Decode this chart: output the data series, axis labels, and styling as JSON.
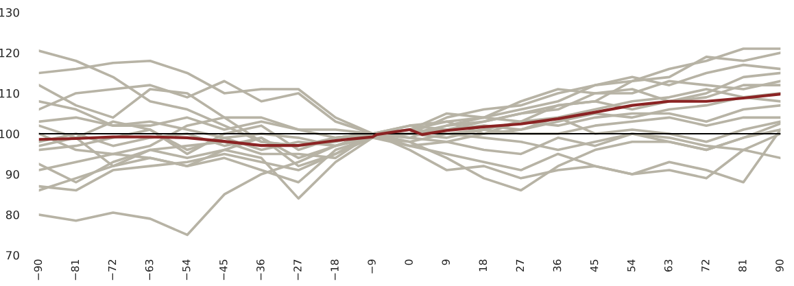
{
  "chart_data": {
    "type": "line",
    "x": [
      -90,
      -81,
      -72,
      -63,
      -54,
      -45,
      -36,
      -27,
      -18,
      -9,
      0,
      9,
      18,
      27,
      36,
      45,
      54,
      63,
      72,
      81,
      90
    ],
    "xlim": [
      -90,
      90
    ],
    "xticks": [
      {
        "value": -90,
        "label": "−90"
      },
      {
        "value": -81,
        "label": "−81"
      },
      {
        "value": -72,
        "label": "−72"
      },
      {
        "value": -63,
        "label": "−63"
      },
      {
        "value": -54,
        "label": "−54"
      },
      {
        "value": -45,
        "label": "−45"
      },
      {
        "value": -36,
        "label": "−36"
      },
      {
        "value": -27,
        "label": "−27"
      },
      {
        "value": -18,
        "label": "−18"
      },
      {
        "value": -9,
        "label": "−9"
      },
      0,
      9,
      18,
      27,
      36,
      45,
      54,
      63,
      72,
      81,
      90
    ],
    "ylim": [
      70,
      130
    ],
    "yticks": [
      70,
      80,
      90,
      100,
      110,
      120,
      130
    ],
    "ref_lines": [
      {
        "axis": "y",
        "value": 100,
        "color": "#000000"
      }
    ],
    "series": [
      {
        "color": "#b7b3a5",
        "values": [
          120.5,
          118,
          114,
          108,
          106,
          102,
          98,
          97,
          98,
          100,
          101,
          103,
          104,
          106,
          108,
          112,
          113,
          116,
          118,
          121,
          121
        ]
      },
      {
        "color": "#b7b3a5",
        "values": [
          115,
          116,
          117.5,
          118,
          115,
          110,
          111,
          111,
          104,
          100,
          102,
          101,
          103,
          105,
          107,
          108,
          113,
          114,
          119,
          118,
          120
        ]
      },
      {
        "color": "#b7b3a5",
        "values": [
          112,
          107,
          104,
          111,
          110,
          104,
          104,
          101,
          99,
          100,
          100,
          104,
          106,
          107,
          110,
          112,
          114,
          112,
          115,
          117,
          116
        ]
      },
      {
        "color": "#b7b3a5",
        "values": [
          106,
          110,
          111,
          112,
          109,
          113,
          108,
          110,
          103,
          100,
          101,
          105,
          104,
          108,
          111,
          110,
          110,
          113,
          112,
          111,
          113
        ]
      },
      {
        "color": "#b7b3a5",
        "values": [
          108,
          106,
          102,
          102,
          104,
          101,
          103,
          101,
          101,
          100,
          99,
          102,
          103,
          105,
          106,
          110,
          111,
          108,
          109,
          112,
          112
        ]
      },
      {
        "color": "#b7b3a5",
        "values": [
          80,
          78.5,
          80.5,
          79,
          75,
          85,
          90,
          93,
          97,
          100,
          102,
          103,
          100,
          103,
          104,
          106,
          108,
          109,
          111,
          109,
          110
        ]
      },
      {
        "color": "#b7b3a5",
        "values": [
          87,
          86,
          91,
          92,
          93,
          95,
          93,
          91,
          95,
          99,
          100,
          101,
          102,
          101,
          103,
          105,
          104,
          106,
          107,
          109,
          108
        ]
      },
      {
        "color": "#b7b3a5",
        "values": [
          86,
          89,
          92,
          94,
          92,
          96,
          94,
          84,
          93,
          99,
          98,
          100,
          101,
          103,
          102,
          104,
          105,
          105,
          103,
          106,
          107
        ]
      },
      {
        "color": "#b7b3a5",
        "values": [
          91,
          93,
          95,
          94,
          92,
          94,
          91,
          88,
          96,
          99,
          100,
          99,
          101,
          100,
          100,
          102,
          103,
          104,
          102,
          104,
          104
        ]
      },
      {
        "color": "#b7b3a5",
        "values": [
          92.5,
          88,
          93,
          96,
          97,
          98,
          95,
          95,
          94,
          100,
          99,
          98,
          100,
          101,
          104,
          100,
          101,
          100,
          98,
          101,
          103
        ]
      },
      {
        "color": "#b7b3a5",
        "values": [
          96,
          97,
          99,
          101,
          96,
          99,
          96,
          98,
          97,
          100,
          101,
          100,
          99,
          98,
          96,
          98,
          100,
          98,
          96,
          99,
          102.5
        ]
      },
      {
        "color": "#b7b3a5",
        "values": [
          98,
          100,
          97,
          99,
          100,
          97,
          99,
          94,
          97,
          99,
          97,
          98,
          96,
          95,
          99,
          97,
          100,
          99,
          97,
          96,
          100
        ]
      },
      {
        "color": "#b7b3a5",
        "values": [
          102,
          99,
          103,
          101,
          95,
          100,
          102,
          96,
          99,
          100,
          98,
          94,
          89,
          86,
          92,
          96,
          98,
          98,
          96,
          99,
          101
        ]
      },
      {
        "color": "#b7b3a5",
        "values": [
          103,
          104,
          102,
          103,
          101,
          99,
          100,
          99,
          97,
          100,
          96,
          91,
          92,
          89,
          91,
          92,
          90,
          91,
          89,
          96,
          94
        ]
      },
      {
        "color": "#b7b3a5",
        "values": [
          100,
          96,
          95,
          97,
          102,
          104,
          98,
          97,
          99,
          100,
          97,
          95,
          93,
          91,
          95,
          92,
          90,
          93,
          91,
          88,
          101
        ]
      },
      {
        "color": "#b7b3a5",
        "values": [
          97,
          99,
          92,
          96,
          94,
          96,
          99,
          92,
          95,
          100,
          100,
          102,
          104,
          103,
          107,
          108,
          106,
          108,
          110,
          114,
          115
        ]
      },
      {
        "color": "#8b2323",
        "x": [
          -90,
          -81,
          -72,
          -63,
          -54,
          -45,
          -36,
          -27,
          -18,
          -9,
          -8,
          0,
          3,
          9,
          18,
          27,
          36,
          45,
          54,
          63,
          72,
          81,
          90
        ],
        "values": [
          98.6,
          98.8,
          99.2,
          99.2,
          99,
          98.1,
          97.1,
          97.1,
          98.3,
          99.2,
          99.8,
          101,
          99.8,
          100.8,
          101.7,
          102.4,
          103.7,
          105.3,
          107,
          108,
          108,
          108.8,
          109.8
        ]
      }
    ]
  }
}
